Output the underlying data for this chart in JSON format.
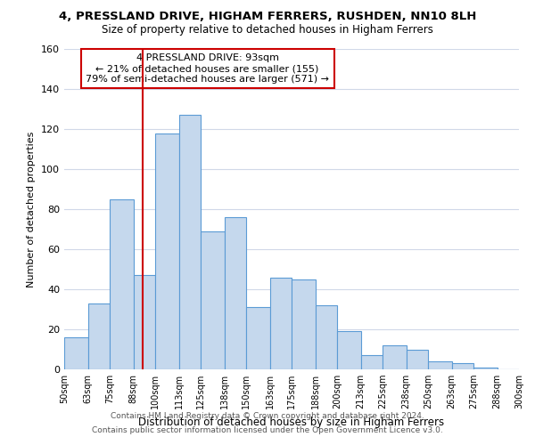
{
  "title1": "4, PRESSLAND DRIVE, HIGHAM FERRERS, RUSHDEN, NN10 8LH",
  "title2": "Size of property relative to detached houses in Higham Ferrers",
  "xlabel": "Distribution of detached houses by size in Higham Ferrers",
  "ylabel": "Number of detached properties",
  "bin_labels": [
    "50sqm",
    "63sqm",
    "75sqm",
    "88sqm",
    "100sqm",
    "113sqm",
    "125sqm",
    "138sqm",
    "150sqm",
    "163sqm",
    "175sqm",
    "188sqm",
    "200sqm",
    "213sqm",
    "225sqm",
    "238sqm",
    "250sqm",
    "263sqm",
    "275sqm",
    "288sqm",
    "300sqm"
  ],
  "bar_heights": [
    16,
    33,
    85,
    47,
    118,
    127,
    69,
    76,
    31,
    46,
    45,
    32,
    19,
    7,
    12,
    10,
    4,
    3,
    1,
    0,
    0
  ],
  "bar_color": "#c5d8ed",
  "bar_edge_color": "#5b9bd5",
  "annotation_line1": "4 PRESSLAND DRIVE: 93sqm",
  "annotation_line2": "← 21% of detached houses are smaller (155)",
  "annotation_line3": "79% of semi-detached houses are larger (571) →",
  "red_line_x": 93,
  "bin_edges": [
    50,
    63,
    75,
    88,
    100,
    113,
    125,
    138,
    150,
    163,
    175,
    188,
    200,
    213,
    225,
    238,
    250,
    263,
    275,
    288,
    300
  ],
  "ylim": [
    0,
    160
  ],
  "yticks": [
    0,
    20,
    40,
    60,
    80,
    100,
    120,
    140,
    160
  ],
  "footer1": "Contains HM Land Registry data © Crown copyright and database right 2024.",
  "footer2": "Contains public sector information licensed under the Open Government Licence v3.0.",
  "bg_color": "#ffffff",
  "grid_color": "#d0d8e8",
  "annotation_box_color": "#ffffff",
  "annotation_box_edge_color": "#cc0000",
  "red_line_color": "#cc0000"
}
